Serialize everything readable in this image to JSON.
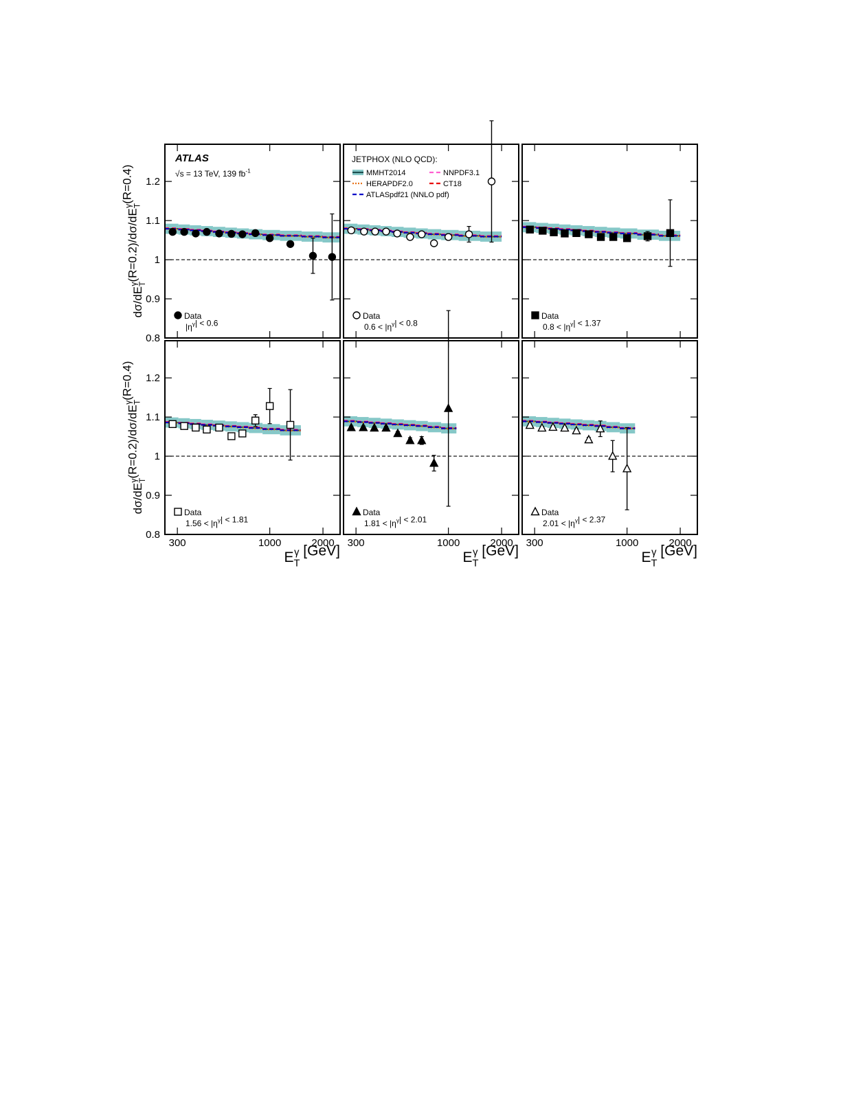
{
  "y_label": "dσ/dE_T^γ(R=0.2)/dσ/dE_T^γ(R=0.4)",
  "x_label": "E_T^γ [GeV]",
  "atlas": "ATLAS",
  "energy": "√s = 13 TeV, 139 fb^{-1}",
  "legend_title": "JETPHOX (NLO QCD):",
  "pdfs": [
    {
      "name": "MMHT2014",
      "color": "#1d4f4f",
      "dash": "none",
      "band_color": "#86c8c8"
    },
    {
      "name": "NNPDF3.1",
      "color": "#ff5fd0",
      "dash": "6 4"
    },
    {
      "name": "HERAPDF2.0",
      "color": "#e8731a",
      "dash": "2 2"
    },
    {
      "name": "CT18",
      "color": "#e80000",
      "dash": "6 4"
    },
    {
      "name": "ATLASpdf21 (NNLO pdf)",
      "color": "#0000c8",
      "dash": "6 4"
    }
  ],
  "axes": {
    "xlim": [
      255,
      2500
    ],
    "xticks": [
      300,
      1000,
      2000
    ],
    "xlog": true,
    "ylim": [
      0.8,
      1.295
    ],
    "yticks": [
      0.8,
      0.9,
      1,
      1.1,
      1.2
    ],
    "reference": 1
  },
  "chart_data": [
    {
      "type": "scatter",
      "name": "Data",
      "label": "|η^γ| < 0.6",
      "marker": "circle",
      "filled": true,
      "x": [
        282,
        328,
        381,
        440,
        517,
        607,
        700,
        829,
        1000,
        1307,
        1755,
        2253
      ],
      "values": [
        1.071,
        1.071,
        1.067,
        1.071,
        1.067,
        1.066,
        1.065,
        1.068,
        1.055,
        1.04,
        1.01,
        1.007
      ],
      "errors": [
        0.003,
        0.003,
        0.003,
        0.003,
        0.003,
        0.003,
        0.003,
        0.004,
        0.005,
        0.007,
        0.045,
        0.11
      ],
      "edges": [
        255,
        304,
        353,
        409,
        477,
        560,
        652,
        762,
        910,
        1143,
        1514,
        1988,
        2500
      ],
      "band": 0.013,
      "theory": [
        [
          1.079,
          1.077,
          1.075,
          1.073,
          1.071,
          1.069,
          1.067,
          1.065,
          1.063,
          1.061,
          1.059,
          1.057
        ],
        [
          1.081,
          1.079,
          1.077,
          1.075,
          1.073,
          1.071,
          1.069,
          1.067,
          1.065,
          1.063,
          1.061,
          1.059
        ],
        [
          1.078,
          1.076,
          1.074,
          1.072,
          1.07,
          1.068,
          1.066,
          1.064,
          1.062,
          1.06,
          1.058,
          1.056
        ],
        [
          1.08,
          1.078,
          1.076,
          1.074,
          1.072,
          1.07,
          1.068,
          1.066,
          1.064,
          1.062,
          1.06,
          1.058
        ],
        [
          1.079,
          1.077,
          1.075,
          1.073,
          1.071,
          1.069,
          1.067,
          1.065,
          1.063,
          1.061,
          1.059,
          1.057
        ]
      ]
    },
    {
      "type": "scatter",
      "name": "Data",
      "label": "0.6 < |η^γ| < 0.8",
      "marker": "circle",
      "filled": false,
      "x": [
        282,
        333,
        385,
        444,
        513,
        607,
        706,
        829,
        1000,
        1307,
        1755
      ],
      "values": [
        1.075,
        1.072,
        1.072,
        1.072,
        1.067,
        1.058,
        1.065,
        1.042,
        1.058,
        1.065,
        1.2
      ],
      "errors": [
        0.004,
        0.004,
        0.004,
        0.004,
        0.004,
        0.004,
        0.004,
        0.005,
        0.008,
        0.02,
        0.155
      ],
      "edges": [
        255,
        306,
        358,
        413,
        477,
        558,
        655,
        765,
        910,
        1143,
        1514,
        2000
      ],
      "band": 0.013,
      "theory": [
        [
          1.079,
          1.077,
          1.075,
          1.073,
          1.071,
          1.069,
          1.067,
          1.065,
          1.063,
          1.061,
          1.059
        ],
        [
          1.081,
          1.079,
          1.077,
          1.075,
          1.073,
          1.071,
          1.069,
          1.067,
          1.065,
          1.063,
          1.061
        ],
        [
          1.078,
          1.076,
          1.074,
          1.072,
          1.07,
          1.068,
          1.066,
          1.064,
          1.062,
          1.06,
          1.058
        ],
        [
          1.08,
          1.078,
          1.076,
          1.074,
          1.072,
          1.07,
          1.068,
          1.066,
          1.064,
          1.062,
          1.06
        ],
        [
          1.079,
          1.077,
          1.075,
          1.073,
          1.071,
          1.069,
          1.067,
          1.065,
          1.063,
          1.061,
          1.059
        ]
      ]
    },
    {
      "type": "scatter",
      "name": "Data",
      "label": "0.8 < |η^γ| < 1.37",
      "marker": "square",
      "filled": true,
      "x": [
        282,
        333,
        385,
        444,
        517,
        607,
        711,
        836,
        1000,
        1307,
        1755
      ],
      "values": [
        1.077,
        1.074,
        1.07,
        1.067,
        1.068,
        1.065,
        1.058,
        1.058,
        1.055,
        1.06,
        1.068
      ],
      "errors": [
        0.003,
        0.003,
        0.003,
        0.003,
        0.003,
        0.003,
        0.003,
        0.004,
        0.005,
        0.012,
        0.085
      ],
      "edges": [
        255,
        306,
        358,
        413,
        479,
        560,
        657,
        771,
        914,
        1143,
        1514,
        2000
      ],
      "band": 0.013,
      "theory": [
        [
          1.083,
          1.081,
          1.079,
          1.077,
          1.075,
          1.073,
          1.071,
          1.069,
          1.067,
          1.064,
          1.061
        ],
        [
          1.085,
          1.083,
          1.081,
          1.079,
          1.077,
          1.075,
          1.073,
          1.071,
          1.069,
          1.066,
          1.063
        ],
        [
          1.082,
          1.08,
          1.078,
          1.076,
          1.074,
          1.072,
          1.07,
          1.068,
          1.066,
          1.063,
          1.06
        ],
        [
          1.084,
          1.082,
          1.08,
          1.078,
          1.076,
          1.074,
          1.072,
          1.07,
          1.068,
          1.065,
          1.062
        ],
        [
          1.083,
          1.081,
          1.079,
          1.077,
          1.075,
          1.073,
          1.071,
          1.069,
          1.067,
          1.064,
          1.061
        ]
      ]
    },
    {
      "type": "scatter",
      "name": "Data",
      "label": "1.56 < |η^γ| < 1.81",
      "marker": "square",
      "filled": false,
      "x": [
        282,
        328,
        381,
        440,
        517,
        607,
        700,
        829,
        1000,
        1307
      ],
      "values": [
        1.082,
        1.077,
        1.073,
        1.068,
        1.073,
        1.051,
        1.058,
        1.091,
        1.128,
        1.08
      ],
      "errors": [
        0.004,
        0.004,
        0.004,
        0.004,
        0.004,
        0.006,
        0.007,
        0.015,
        0.045,
        0.09
      ],
      "edges": [
        255,
        304,
        353,
        409,
        477,
        560,
        652,
        762,
        910,
        1143,
        1500
      ],
      "band": 0.013,
      "theory": [
        [
          1.086,
          1.084,
          1.082,
          1.08,
          1.078,
          1.076,
          1.074,
          1.072,
          1.069,
          1.066
        ],
        [
          1.088,
          1.086,
          1.084,
          1.082,
          1.08,
          1.078,
          1.076,
          1.074,
          1.071,
          1.068
        ],
        [
          1.085,
          1.083,
          1.081,
          1.079,
          1.077,
          1.075,
          1.073,
          1.071,
          1.068,
          1.065
        ],
        [
          1.087,
          1.085,
          1.083,
          1.081,
          1.079,
          1.077,
          1.075,
          1.073,
          1.07,
          1.067
        ],
        [
          1.086,
          1.084,
          1.082,
          1.08,
          1.078,
          1.076,
          1.074,
          1.072,
          1.069,
          1.066
        ]
      ]
    },
    {
      "type": "scatter",
      "name": "Data",
      "label": "1.81 < |η^γ| < 2.01",
      "marker": "triangle",
      "filled": true,
      "x": [
        282,
        330,
        381,
        444,
        517,
        607,
        706,
        829,
        1000
      ],
      "values": [
        1.073,
        1.073,
        1.072,
        1.072,
        1.058,
        1.04,
        1.04,
        0.982,
        1.122
      ],
      "errors": [
        0.004,
        0.004,
        0.004,
        0.004,
        0.005,
        0.007,
        0.01,
        0.02,
        0.25
      ],
      "edges": [
        255,
        305,
        354,
        413,
        479,
        560,
        655,
        765,
        910,
        1110
      ],
      "band": 0.013,
      "theory": [
        [
          1.089,
          1.087,
          1.085,
          1.083,
          1.081,
          1.079,
          1.077,
          1.074,
          1.071
        ],
        [
          1.091,
          1.089,
          1.087,
          1.085,
          1.083,
          1.081,
          1.079,
          1.076,
          1.073
        ],
        [
          1.088,
          1.086,
          1.084,
          1.082,
          1.08,
          1.078,
          1.076,
          1.073,
          1.07
        ],
        [
          1.09,
          1.088,
          1.086,
          1.084,
          1.082,
          1.08,
          1.078,
          1.075,
          1.072
        ],
        [
          1.089,
          1.087,
          1.085,
          1.083,
          1.081,
          1.079,
          1.077,
          1.074,
          1.071
        ]
      ]
    },
    {
      "type": "scatter",
      "name": "Data",
      "label": "2.01 < |η^γ| < 2.37",
      "marker": "triangle",
      "filled": false,
      "x": [
        282,
        330,
        381,
        444,
        517,
        607,
        706,
        829,
        1000
      ],
      "values": [
        1.079,
        1.072,
        1.074,
        1.072,
        1.065,
        1.042,
        1.07,
        1.0,
        0.968
      ],
      "errors": [
        0.004,
        0.004,
        0.004,
        0.004,
        0.005,
        0.006,
        0.02,
        0.04,
        0.105
      ],
      "edges": [
        255,
        305,
        354,
        413,
        479,
        560,
        655,
        765,
        910,
        1110
      ],
      "band": 0.013,
      "theory": [
        [
          1.089,
          1.087,
          1.085,
          1.083,
          1.081,
          1.079,
          1.077,
          1.074,
          1.071
        ],
        [
          1.091,
          1.089,
          1.087,
          1.085,
          1.083,
          1.081,
          1.079,
          1.076,
          1.073
        ],
        [
          1.088,
          1.086,
          1.084,
          1.082,
          1.08,
          1.078,
          1.076,
          1.073,
          1.07
        ],
        [
          1.09,
          1.088,
          1.086,
          1.084,
          1.082,
          1.08,
          1.078,
          1.075,
          1.072
        ],
        [
          1.089,
          1.087,
          1.085,
          1.083,
          1.081,
          1.079,
          1.077,
          1.074,
          1.071
        ]
      ]
    }
  ]
}
